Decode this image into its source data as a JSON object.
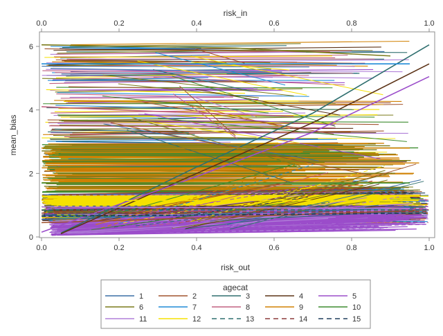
{
  "chart_data": {
    "type": "line",
    "x_bottom_label": "risk_out",
    "x_top_label": "risk_in",
    "ylabel": "mean_bias",
    "xlim": [
      0.0,
      1.0
    ],
    "ylim": [
      0.0,
      6.15
    ],
    "x_ticks": [
      0.0,
      0.2,
      0.4,
      0.6,
      0.8,
      1.0
    ],
    "x_tick_labels": [
      "0.0",
      "0.2",
      "0.4",
      "0.6",
      "0.8",
      "1.0"
    ],
    "y_ticks": [
      0,
      2,
      4,
      6
    ],
    "y_tick_labels": [
      "0",
      "2",
      "4",
      "6"
    ],
    "legend_title": "agecat",
    "legend_position": "bottom",
    "series": [
      {
        "name": "1",
        "color": "#3a6ea5",
        "dash": "solid",
        "values": [
          [
            0.0,
            0.55
          ],
          [
            0.2,
            0.62
          ],
          [
            0.4,
            0.7
          ],
          [
            0.6,
            0.78
          ],
          [
            0.8,
            0.85
          ],
          [
            0.99,
            0.95
          ]
        ]
      },
      {
        "name": "2",
        "color": "#a0522d",
        "dash": "solid",
        "values": [
          [
            0.0,
            0.45
          ],
          [
            0.2,
            0.52
          ],
          [
            0.4,
            0.6
          ],
          [
            0.6,
            0.68
          ],
          [
            0.8,
            0.76
          ],
          [
            0.99,
            0.85
          ]
        ]
      },
      {
        "name": "3",
        "color": "#2e6e6e",
        "dash": "solid",
        "values": [
          [
            0.05,
            0.12
          ],
          [
            0.4,
            2.2
          ],
          [
            0.7,
            3.9
          ],
          [
            1.0,
            6.05
          ]
        ]
      },
      {
        "name": "4",
        "color": "#5c3317",
        "dash": "solid",
        "values": [
          [
            0.05,
            0.1
          ],
          [
            0.4,
            2.0
          ],
          [
            0.7,
            3.6
          ],
          [
            1.0,
            5.45
          ]
        ]
      },
      {
        "name": "5",
        "color": "#9b4dca",
        "dash": "solid",
        "values": [
          [
            0.0,
            0.15
          ],
          [
            0.4,
            1.9
          ],
          [
            0.7,
            3.3
          ],
          [
            1.0,
            5.05
          ]
        ]
      },
      {
        "name": "6",
        "color": "#7a7a1a",
        "dash": "solid",
        "values": [
          [
            0.0,
            6.05
          ],
          [
            0.5,
            5.95
          ],
          [
            0.9,
            5.7
          ]
        ]
      },
      {
        "name": "7",
        "color": "#1f8ad6",
        "dash": "solid",
        "values": [
          [
            0.0,
            5.45
          ],
          [
            0.5,
            5.45
          ],
          [
            0.95,
            5.45
          ]
        ]
      },
      {
        "name": "8",
        "color": "#c06080",
        "dash": "solid",
        "values": [
          [
            0.0,
            4.1
          ],
          [
            0.3,
            3.95
          ],
          [
            0.65,
            3.8
          ]
        ]
      },
      {
        "name": "9",
        "color": "#d08000",
        "dash": "solid",
        "values": [
          [
            0.0,
            2.8
          ],
          [
            0.5,
            2.8
          ],
          [
            0.95,
            2.8
          ]
        ]
      },
      {
        "name": "10",
        "color": "#3d8c2f",
        "dash": "solid",
        "values": [
          [
            0.0,
            1.7
          ],
          [
            0.5,
            1.7
          ],
          [
            0.95,
            1.7
          ]
        ]
      },
      {
        "name": "11",
        "color": "#b07fd8",
        "dash": "solid",
        "values": [
          [
            0.0,
            0.95
          ],
          [
            0.5,
            0.92
          ],
          [
            0.95,
            0.9
          ]
        ]
      },
      {
        "name": "12",
        "color": "#f5e000",
        "dash": "solid",
        "values": [
          [
            0.0,
            1.15
          ],
          [
            0.5,
            1.15
          ],
          [
            0.95,
            1.15
          ]
        ]
      },
      {
        "name": "13",
        "color": "#2e6e6e",
        "dash": "dash",
        "values": [
          [
            0.0,
            0.85
          ],
          [
            0.5,
            0.85
          ],
          [
            1.0,
            0.85
          ]
        ]
      },
      {
        "name": "14",
        "color": "#8b3a3a",
        "dash": "dash",
        "values": [
          [
            0.0,
            0.75
          ],
          [
            0.5,
            0.78
          ],
          [
            1.0,
            0.8
          ]
        ]
      },
      {
        "name": "15",
        "color": "#1e3d5c",
        "dash": "dash",
        "values": [
          [
            0.0,
            0.65
          ],
          [
            0.5,
            0.7
          ],
          [
            1.0,
            0.75
          ]
        ]
      }
    ]
  }
}
